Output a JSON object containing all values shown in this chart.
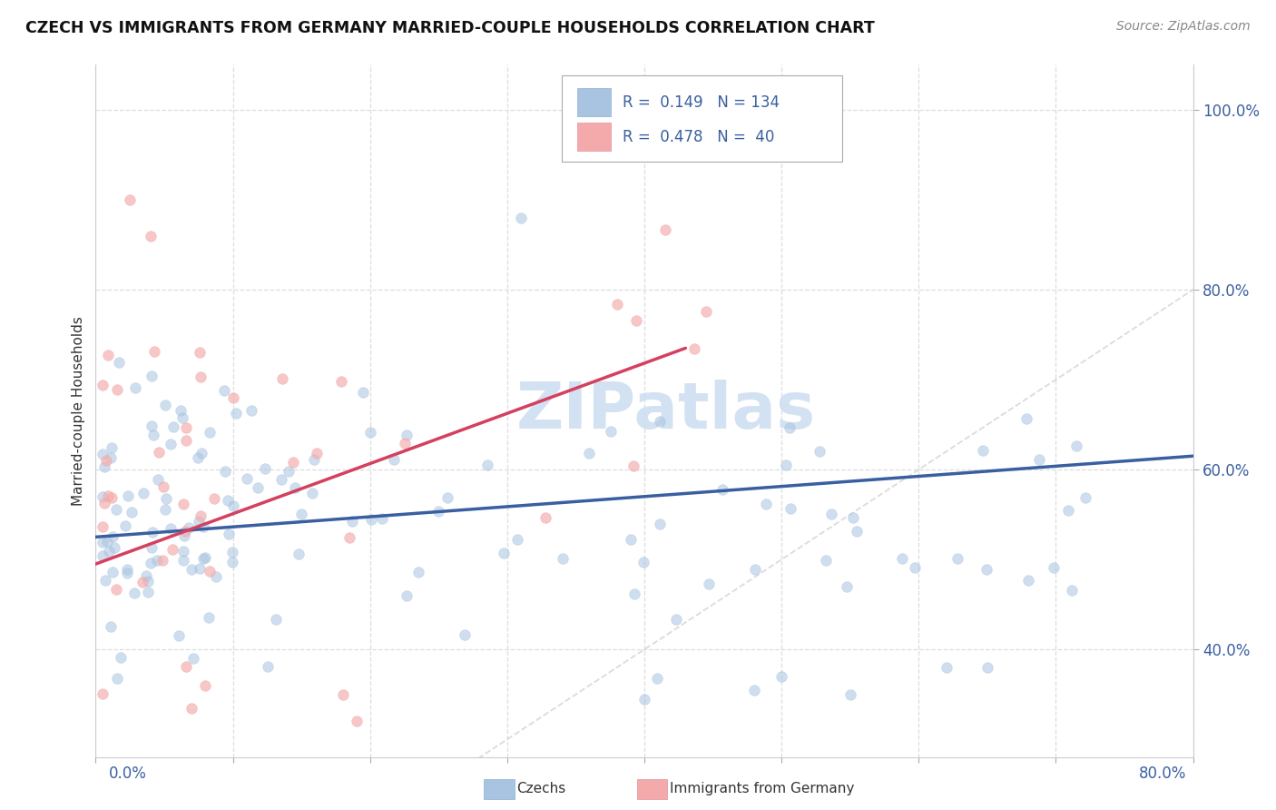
{
  "title": "CZECH VS IMMIGRANTS FROM GERMANY MARRIED-COUPLE HOUSEHOLDS CORRELATION CHART",
  "source": "Source: ZipAtlas.com",
  "ylabel": "Married-couple Households",
  "xlim": [
    0.0,
    0.8
  ],
  "ylim": [
    0.28,
    1.05
  ],
  "yticks": [
    0.4,
    0.6,
    0.8,
    1.0
  ],
  "ytick_labels": [
    "40.0%",
    "60.0%",
    "80.0%",
    "100.0%"
  ],
  "xtick_labels": [
    "0.0%",
    "",
    "",
    "",
    "",
    "",
    "",
    "",
    "80.0%"
  ],
  "legend1_R": "0.149",
  "legend1_N": "134",
  "legend2_R": "0.478",
  "legend2_N": "40",
  "blue_color": "#a8c4e0",
  "pink_color": "#f4aaaa",
  "trend_blue": "#3a5fa0",
  "trend_pink": "#d44060",
  "diag_color": "#cccccc",
  "watermark": "ZIPatlas",
  "watermark_color": "#ccddf0",
  "blue_label": "Czechs",
  "pink_label": "Immigrants from Germany"
}
